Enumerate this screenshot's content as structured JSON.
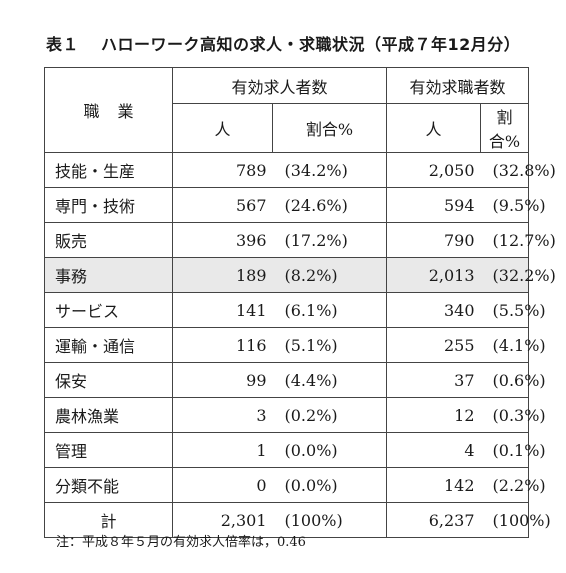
{
  "title": {
    "label": "表１",
    "text": "ハローワーク高知の求人・求職状況（平成７年12月分）"
  },
  "headers": {
    "occupation": "職業",
    "openings": "有効求人者数",
    "seekers": "有効求職者数",
    "count": "人",
    "share": "割合%"
  },
  "rows": [
    {
      "occupation": "技能・生産",
      "openings": "789",
      "openings_pct": "(34.2%)",
      "seekers": "2,050",
      "seekers_pct": "(32.8%)"
    },
    {
      "occupation": "専門・技術",
      "openings": "567",
      "openings_pct": "(24.6%)",
      "seekers": "594",
      "seekers_pct": "(9.5%)"
    },
    {
      "occupation": "販売",
      "openings": "396",
      "openings_pct": "(17.2%)",
      "seekers": "790",
      "seekers_pct": "(12.7%)"
    },
    {
      "occupation": "事務",
      "openings": "189",
      "openings_pct": "(8.2%)",
      "seekers": "2,013",
      "seekers_pct": "(32.2%)"
    },
    {
      "occupation": "サービス",
      "openings": "141",
      "openings_pct": "(6.1%)",
      "seekers": "340",
      "seekers_pct": "(5.5%)"
    },
    {
      "occupation": "運輸・通信",
      "openings": "116",
      "openings_pct": "(5.1%)",
      "seekers": "255",
      "seekers_pct": "(4.1%)"
    },
    {
      "occupation": "保安",
      "openings": "99",
      "openings_pct": "(4.4%)",
      "seekers": "37",
      "seekers_pct": "(0.6%)"
    },
    {
      "occupation": "農林漁業",
      "openings": "3",
      "openings_pct": "(0.2%)",
      "seekers": "12",
      "seekers_pct": "(0.3%)"
    },
    {
      "occupation": "管理",
      "openings": "1",
      "openings_pct": "(0.0%)",
      "seekers": "4",
      "seekers_pct": "(0.1%)"
    },
    {
      "occupation": "分類不能",
      "openings": "0",
      "openings_pct": "(0.0%)",
      "seekers": "142",
      "seekers_pct": "(2.2%)"
    }
  ],
  "total": {
    "label": "計",
    "openings": "2,301",
    "openings_pct": "(100%)",
    "seekers": "6,237",
    "seekers_pct": "(100%)"
  },
  "note": "注：平成８年５月の有効求人倍率は，0.46"
}
